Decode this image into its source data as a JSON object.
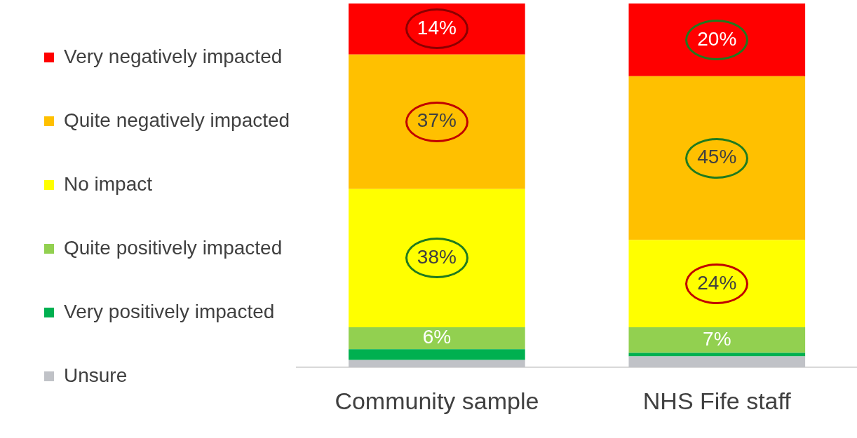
{
  "chart_data": {
    "type": "bar",
    "stacked": true,
    "legend": "left",
    "categories": [
      "Community sample",
      "NHS Fife staff"
    ],
    "series": [
      {
        "name": "Unsure",
        "color": "#c0c2c7",
        "values": [
          2,
          3
        ],
        "value_labels": [
          null,
          null
        ]
      },
      {
        "name": "Very positively impacted",
        "color": "#00b050",
        "values": [
          3,
          1
        ],
        "value_labels": [
          null,
          null
        ]
      },
      {
        "name": "Quite positively impacted",
        "color": "#92d050",
        "values": [
          6,
          7
        ],
        "value_labels": [
          "6%",
          "7%"
        ]
      },
      {
        "name": "No impact",
        "color": "#ffff00",
        "values": [
          38,
          24
        ],
        "value_labels": [
          "38%",
          "24%"
        ]
      },
      {
        "name": "Quite negatively impacted",
        "color": "#ffc000",
        "values": [
          37,
          45
        ],
        "value_labels": [
          "37%",
          "45%"
        ]
      },
      {
        "name": "Very negatively impacted",
        "color": "#ff0000",
        "values": [
          14,
          20
        ],
        "value_labels": [
          "14%",
          "20%"
        ]
      }
    ]
  }
}
